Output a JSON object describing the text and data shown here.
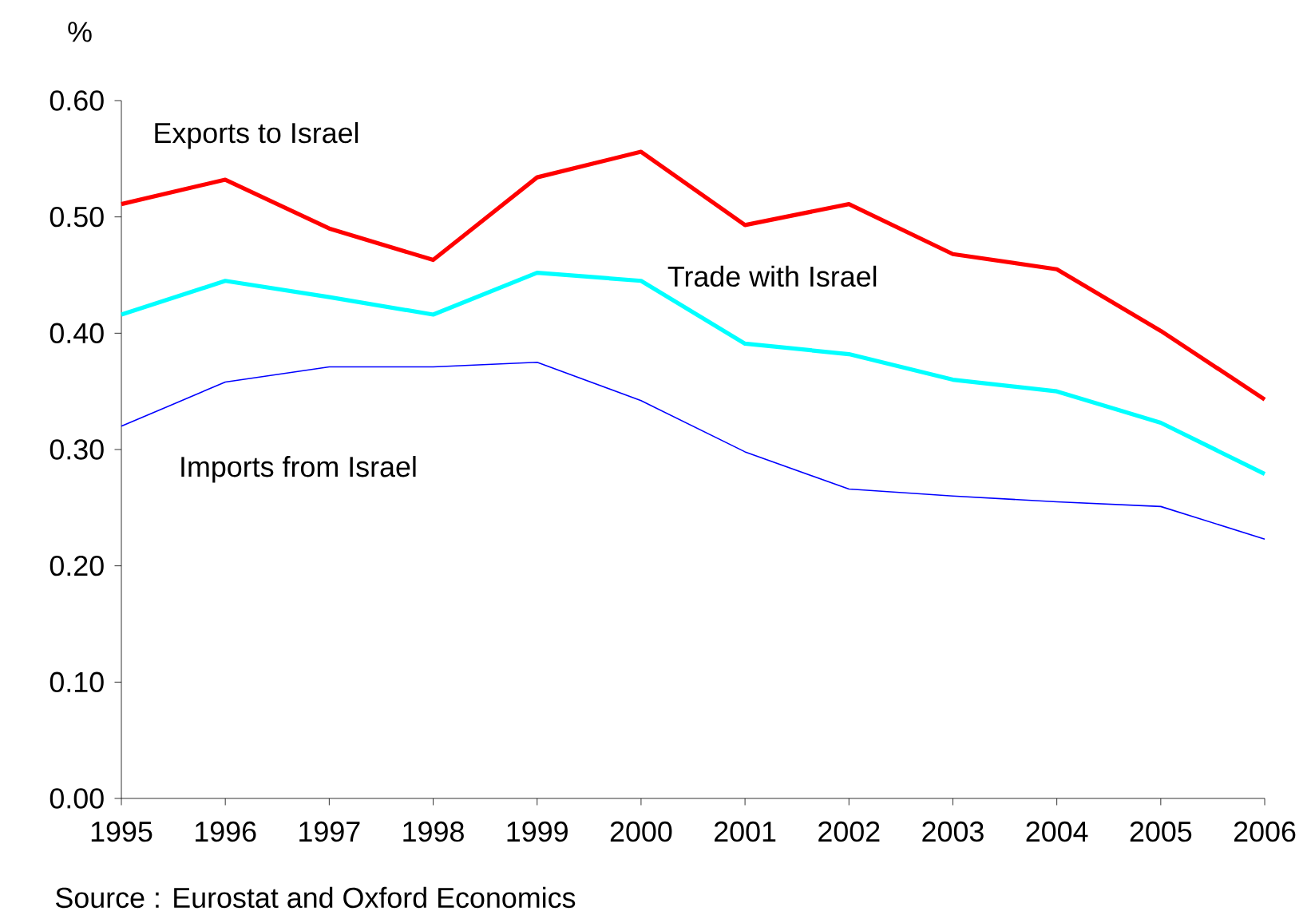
{
  "chart_data": {
    "type": "line",
    "ylabel": "%",
    "x": [
      1995,
      1996,
      1997,
      1998,
      1999,
      2000,
      2001,
      2002,
      2003,
      2004,
      2005,
      2006
    ],
    "series": [
      {
        "name": "Exports to Israel",
        "color": "#ff0000",
        "values": [
          0.511,
          0.532,
          0.49,
          0.463,
          0.534,
          0.556,
          0.493,
          0.511,
          0.468,
          0.455,
          0.402,
          0.343
        ]
      },
      {
        "name": "Trade with Israel",
        "color": "#00ffff",
        "values": [
          0.416,
          0.445,
          0.431,
          0.416,
          0.452,
          0.445,
          0.391,
          0.382,
          0.36,
          0.35,
          0.323,
          0.279
        ]
      },
      {
        "name": "Imports from Israel",
        "color": "#0000ff",
        "values": [
          0.32,
          0.358,
          0.371,
          0.371,
          0.375,
          0.342,
          0.298,
          0.266,
          0.26,
          0.255,
          0.251,
          0.223
        ]
      }
    ],
    "xlim": [
      1995,
      2006
    ],
    "xticks": [
      1995,
      1996,
      1997,
      1998,
      1999,
      2000,
      2001,
      2002,
      2003,
      2004,
      2005,
      2006
    ],
    "ylim": [
      0,
      0.6
    ],
    "yticks": [
      {
        "value": 0,
        "label": "0.00"
      },
      {
        "value": 0.1,
        "label": "0.10"
      },
      {
        "value": 0.2,
        "label": "0.20"
      },
      {
        "value": 0.3,
        "label": "0.30"
      },
      {
        "value": 0.4,
        "label": "0.40"
      },
      {
        "value": 0.5,
        "label": "0.50"
      },
      {
        "value": 0.6,
        "label": "0.60"
      }
    ],
    "grid": false,
    "legend": false,
    "marker": "none",
    "line_style": "solid",
    "annotations": [
      "Source : Eurostat and Oxford Economics"
    ]
  }
}
